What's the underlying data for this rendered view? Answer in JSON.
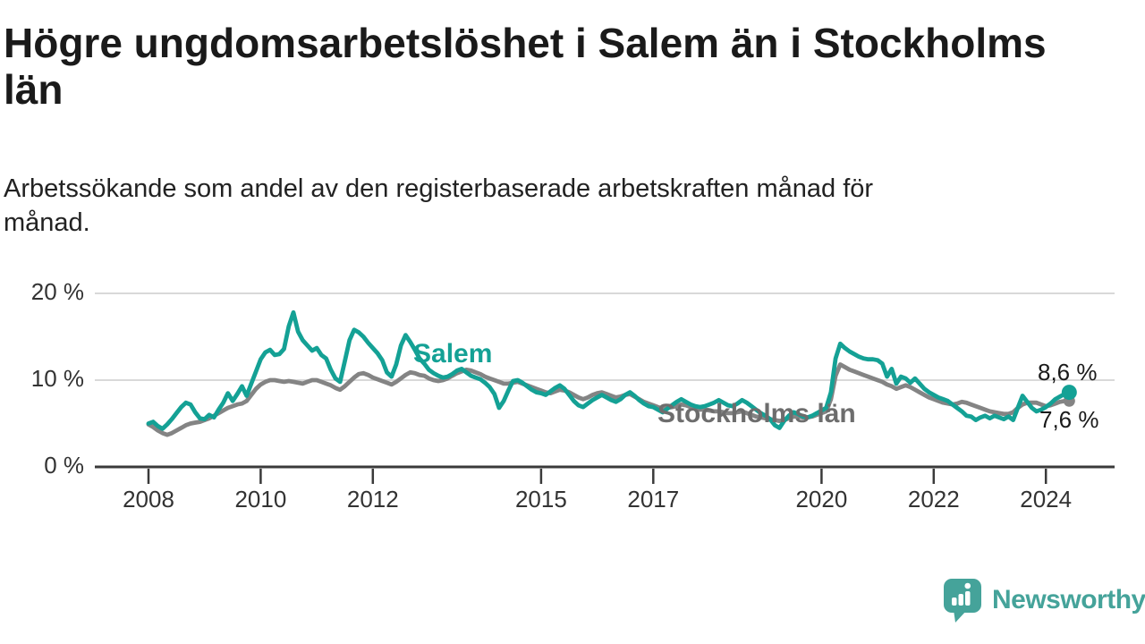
{
  "header": {
    "title": "Högre ungdomsarbetslöshet i Salem än i Stockholms län",
    "subtitle": "Arbetssökande som andel av den registerbaserade arbetskraften månad för månad."
  },
  "colors": {
    "accent_teal": "#14A195",
    "series_gray": "#848484",
    "label_gray": "#6D6D6D",
    "title_text": "#1A1A1A",
    "axis_text": "#333333",
    "axis_line": "#3A3A3A",
    "grid_line": "#D9D9D9",
    "brand_teal": "#45A39A"
  },
  "chart_data": {
    "type": "line",
    "title": "Högre ungdomsarbetslöshet i Salem än i Stockholms län",
    "subtitle": "Arbetssökande som andel av den registerbaserade arbetskraften månad för månad.",
    "unit": "%",
    "frequency": "monthly",
    "start": "2008-01",
    "end": "2024-06",
    "ylim": [
      0,
      20
    ],
    "grid": "horizontal",
    "legend": "inline-labels",
    "yticks": [
      {
        "value": 0,
        "label": "0 %"
      },
      {
        "value": 10,
        "label": "10 %"
      },
      {
        "value": 20,
        "label": "20 %"
      }
    ],
    "xticks": [
      {
        "value": 2008,
        "label": "2008"
      },
      {
        "value": 2010,
        "label": "2010"
      },
      {
        "value": 2012,
        "label": "2012"
      },
      {
        "value": 2015,
        "label": "2015"
      },
      {
        "value": 2017,
        "label": "2017"
      },
      {
        "value": 2020,
        "label": "2020"
      },
      {
        "value": 2022,
        "label": "2022"
      },
      {
        "value": 2024,
        "label": "2024"
      }
    ],
    "series": [
      {
        "name": "Salem",
        "color": "#14A195",
        "end_label": "8,6 %",
        "end_value": 8.6,
        "values": [
          5.0,
          5.2,
          4.7,
          4.4,
          4.9,
          5.5,
          6.2,
          6.9,
          7.4,
          7.2,
          6.3,
          5.6,
          5.5,
          6.0,
          5.7,
          6.6,
          7.4,
          8.5,
          7.6,
          8.4,
          9.3,
          8.2,
          9.6,
          11.0,
          12.4,
          13.2,
          13.5,
          12.9,
          13.0,
          13.6,
          16.2,
          17.8,
          15.6,
          14.6,
          14.0,
          13.4,
          13.7,
          12.9,
          12.5,
          11.2,
          10.2,
          9.8,
          12.2,
          14.6,
          15.8,
          15.5,
          15.0,
          14.3,
          13.7,
          13.1,
          12.3,
          10.9,
          10.4,
          11.8,
          14.0,
          15.2,
          14.4,
          13.5,
          12.5,
          11.9,
          11.2,
          10.8,
          10.5,
          10.3,
          10.4,
          10.7,
          11.1,
          11.3,
          10.9,
          10.5,
          10.3,
          10.1,
          9.7,
          9.2,
          8.4,
          6.8,
          7.6,
          8.8,
          9.9,
          10.0,
          9.7,
          9.3,
          8.9,
          8.6,
          8.5,
          8.3,
          8.7,
          9.1,
          9.4,
          9.0,
          8.3,
          7.6,
          7.1,
          6.9,
          7.3,
          7.7,
          8.0,
          8.3,
          8.0,
          7.7,
          7.5,
          7.8,
          8.3,
          8.6,
          8.2,
          7.7,
          7.3,
          7.0,
          6.9,
          6.6,
          6.3,
          6.7,
          7.1,
          7.5,
          7.8,
          7.5,
          7.2,
          7.0,
          6.9,
          7.0,
          7.2,
          7.4,
          7.7,
          7.4,
          7.1,
          7.0,
          7.3,
          7.7,
          7.4,
          7.0,
          6.6,
          6.2,
          5.9,
          5.5,
          4.8,
          4.5,
          5.3,
          5.9,
          6.3,
          6.1,
          5.8,
          5.7,
          5.9,
          6.2,
          6.5,
          6.8,
          8.6,
          12.5,
          14.2,
          13.7,
          13.3,
          13.0,
          12.7,
          12.5,
          12.4,
          12.4,
          12.3,
          11.9,
          10.4,
          11.3,
          9.6,
          10.4,
          10.2,
          9.7,
          10.2,
          9.6,
          9.0,
          8.6,
          8.3,
          8.0,
          7.8,
          7.6,
          7.2,
          6.8,
          6.4,
          5.9,
          5.8,
          5.4,
          5.7,
          5.9,
          5.6,
          5.9,
          5.7,
          5.5,
          5.8,
          5.4,
          6.8,
          8.2,
          7.5,
          6.8,
          6.4,
          6.6,
          6.9,
          7.3,
          7.8,
          8.1,
          8.4,
          8.6
        ]
      },
      {
        "name": "Stockholms län",
        "color": "#848484",
        "end_label": "7,6 %",
        "end_value": 7.6,
        "values": [
          4.9,
          4.6,
          4.2,
          3.9,
          3.7,
          3.9,
          4.2,
          4.5,
          4.8,
          5.0,
          5.1,
          5.2,
          5.4,
          5.6,
          5.9,
          6.2,
          6.5,
          6.8,
          7.0,
          7.2,
          7.3,
          7.6,
          8.3,
          9.0,
          9.5,
          9.8,
          10.0,
          10.0,
          9.9,
          9.8,
          9.9,
          9.8,
          9.7,
          9.6,
          9.8,
          10.0,
          10.0,
          9.8,
          9.6,
          9.4,
          9.1,
          8.9,
          9.3,
          9.8,
          10.3,
          10.7,
          10.8,
          10.6,
          10.3,
          10.1,
          9.9,
          9.7,
          9.5,
          9.8,
          10.2,
          10.6,
          10.9,
          10.8,
          10.6,
          10.5,
          10.2,
          10.0,
          9.9,
          10.0,
          10.2,
          10.5,
          10.8,
          11.0,
          11.2,
          11.1,
          10.9,
          10.7,
          10.4,
          10.2,
          10.0,
          9.8,
          9.6,
          9.6,
          9.7,
          9.8,
          9.6,
          9.4,
          9.2,
          9.0,
          8.8,
          8.6,
          8.5,
          8.7,
          8.9,
          8.8,
          8.6,
          8.3,
          8.0,
          7.8,
          8.0,
          8.3,
          8.5,
          8.6,
          8.4,
          8.2,
          8.0,
          8.1,
          8.3,
          8.4,
          8.1,
          7.8,
          7.5,
          7.3,
          7.1,
          6.9,
          6.7,
          6.8,
          6.9,
          7.0,
          7.2,
          7.1,
          6.9,
          6.7,
          6.6,
          6.6,
          6.5,
          6.4,
          6.4,
          6.3,
          6.2,
          6.2,
          6.3,
          6.4,
          6.2,
          6.0,
          5.8,
          5.7,
          5.6,
          5.5,
          5.4,
          5.3,
          5.4,
          5.6,
          5.8,
          5.8,
          5.7,
          5.7,
          5.8,
          6.0,
          6.2,
          6.4,
          7.8,
          10.5,
          11.8,
          11.5,
          11.2,
          11.0,
          10.8,
          10.6,
          10.4,
          10.2,
          10.0,
          9.8,
          9.5,
          9.3,
          9.0,
          9.2,
          9.4,
          9.2,
          8.9,
          8.6,
          8.3,
          8.0,
          7.8,
          7.6,
          7.4,
          7.3,
          7.2,
          7.3,
          7.5,
          7.4,
          7.2,
          7.0,
          6.8,
          6.6,
          6.4,
          6.3,
          6.2,
          6.1,
          6.1,
          6.3,
          6.8,
          7.2,
          7.4,
          7.4,
          7.4,
          7.2,
          7.0,
          7.1,
          7.3,
          7.5,
          7.6,
          7.6
        ]
      }
    ]
  },
  "footer": {
    "brand": "Newsworthy",
    "logo_icon": "bar-chart-speech-bubble-icon"
  }
}
